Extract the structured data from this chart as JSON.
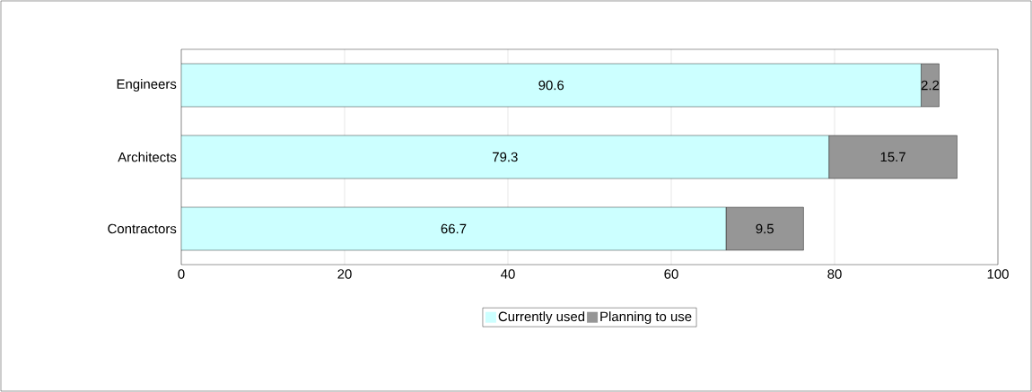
{
  "chart_data": {
    "type": "bar",
    "orientation": "horizontal",
    "stacked": true,
    "categories": [
      "Engineers",
      "Architects",
      "Contractors"
    ],
    "series": [
      {
        "name": "Currently used",
        "color": "#ccffff",
        "values": [
          90.6,
          79.3,
          66.7
        ]
      },
      {
        "name": "Planning to use",
        "color": "#969696",
        "values": [
          2.2,
          15.7,
          9.5
        ]
      }
    ],
    "xlim": [
      0,
      100
    ],
    "xticks": [
      0,
      20,
      40,
      60,
      80,
      100
    ],
    "grid": "x",
    "legend": "bottom",
    "data_labels": true
  }
}
